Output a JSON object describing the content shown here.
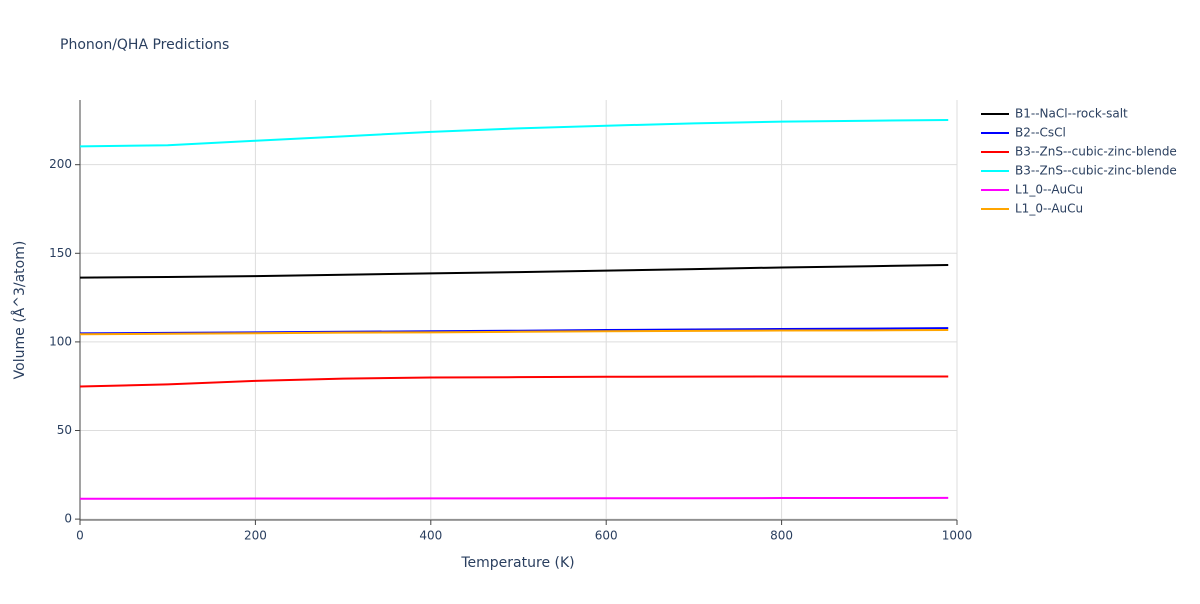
{
  "chart_data": {
    "type": "line",
    "title": "Phonon/QHA Predictions",
    "x_label": "Temperature (K)",
    "y_label": "Volume (Å^3/atom)",
    "x": [
      0,
      100,
      200,
      300,
      400,
      500,
      600,
      700,
      800,
      900,
      990
    ],
    "series": [
      {
        "name": "B1--NaCl--rock-salt",
        "color": "#000000",
        "values": [
          136.3,
          136.6,
          137.1,
          137.9,
          138.7,
          139.4,
          140.2,
          141.1,
          142,
          142.7,
          143.4
        ]
      },
      {
        "name": "B2--CsCl",
        "color": "#0000ff",
        "values": [
          104.8,
          105.1,
          105.4,
          105.7,
          106,
          106.3,
          106.7,
          107,
          107.3,
          107.5,
          107.8
        ]
      },
      {
        "name": "B3--ZnS--cubic-zinc-blende",
        "color": "#ff0000",
        "values": [
          74.8,
          76,
          78,
          79.3,
          79.9,
          80.1,
          80.3,
          80.4,
          80.5,
          80.5,
          80.5
        ]
      },
      {
        "name": "B3--ZnS--cubic-zinc-blende",
        "color": "#00ffff",
        "values": [
          210.3,
          211,
          213.5,
          216,
          218.5,
          220.5,
          222,
          223.3,
          224.3,
          224.8,
          225.2
        ]
      },
      {
        "name": "L1_0--AuCu",
        "color": "#ff00ff",
        "values": [
          11.5,
          11.5,
          11.6,
          11.6,
          11.7,
          11.7,
          11.8,
          11.8,
          11.9,
          11.9,
          12
        ]
      },
      {
        "name": "L1_0--AuCu",
        "color": "#ffa500",
        "values": [
          104.3,
          104.6,
          104.9,
          105.2,
          105.4,
          105.7,
          106,
          106.2,
          106.4,
          106.5,
          106.7
        ]
      }
    ],
    "xlim": [
      0,
      1000
    ],
    "xticks": [
      0,
      200,
      400,
      600,
      800,
      1000
    ],
    "ylim": [
      -0.5,
      236.5
    ],
    "yticks": [
      0,
      50,
      100,
      150,
      200
    ],
    "grid": true,
    "legend": "right"
  }
}
